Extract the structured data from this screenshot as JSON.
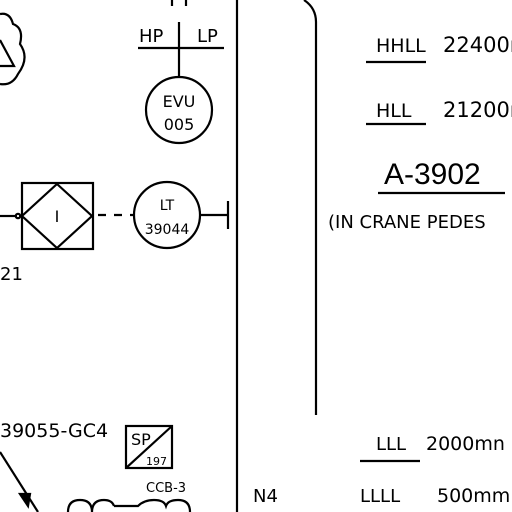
{
  "instrument_evu": {
    "tag": "EVU",
    "number": "005",
    "hp_label": "HP",
    "lp_label": "LP"
  },
  "instrument_lt": {
    "tag": "LT",
    "number": "39044"
  },
  "interlock": {
    "symbol": "I",
    "tag_fragment": "21"
  },
  "line_tag": "39055-GC4",
  "setpoint": {
    "label": "SP",
    "number": "197"
  },
  "ccb_label": "CCB-3",
  "nozzle_label": "N4",
  "vessel": {
    "id": "A-3902",
    "location_note": "(IN CRANE PEDES",
    "levels": [
      {
        "name": "HHLL",
        "value": "22400r"
      },
      {
        "name": "HLL",
        "value": "21200r"
      },
      {
        "name": "LLL",
        "value": "2000mn"
      },
      {
        "name": "LLLL",
        "value": "500mm"
      }
    ]
  }
}
